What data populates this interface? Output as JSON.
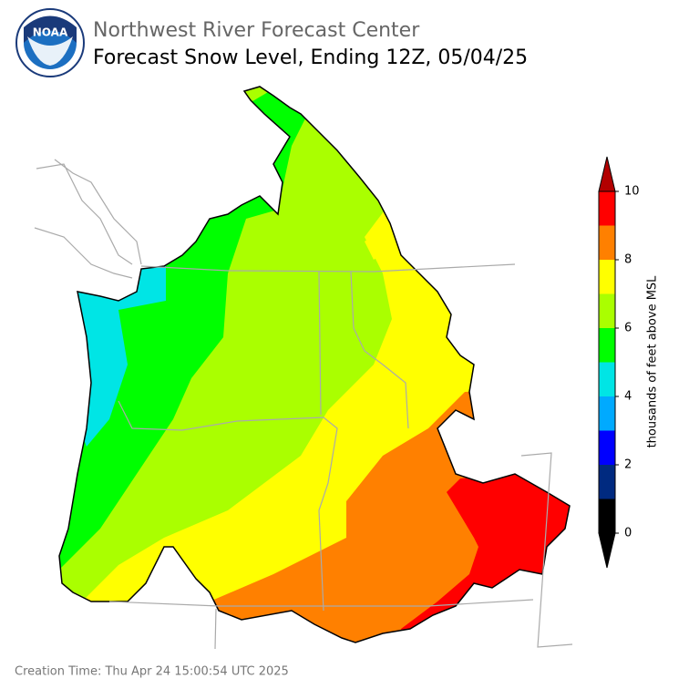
{
  "header": {
    "logo_text": "NOAA",
    "title": "Northwest River Forecast Center",
    "subtitle": "Forecast Snow Level, Ending 12Z, 05/04/25"
  },
  "colorbar": {
    "label": "thousands of feet above MSL",
    "lim": [
      0,
      10
    ],
    "ticks": [
      0,
      2,
      4,
      6,
      8,
      10
    ],
    "colors": [
      "#000000",
      "#002a80",
      "#0000ff",
      "#00aaff",
      "#00e5e5",
      "#00ff00",
      "#aaff00",
      "#ffff00",
      "#ff8000",
      "#ff0000"
    ],
    "over_color": "#b30000",
    "under_color": "#000000"
  },
  "footer": {
    "creation_time": "Creation Time: Thu Apr 24 15:00:54 UTC 2025"
  }
}
